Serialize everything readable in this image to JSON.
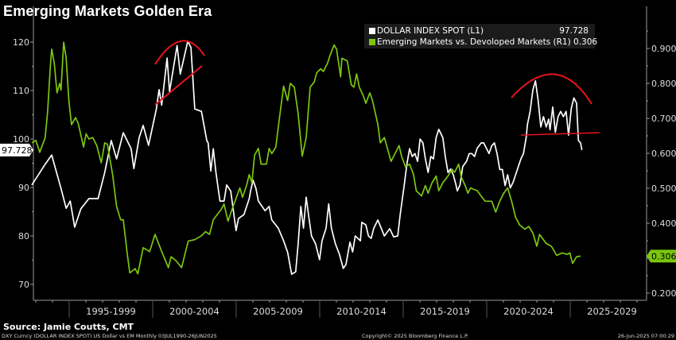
{
  "title": "Emerging Markets Golden Era",
  "legend": {
    "items": [
      {
        "label": "DOLLAR INDEX SPOT (L1)",
        "value": "97.728",
        "color": "#ffffff"
      },
      {
        "label": "Emerging Markets vs. Devoloped Markets (R1)",
        "value": "0.306",
        "color": "#7cc70e"
      }
    ]
  },
  "source": "Source: Jamie Coutts, CMT",
  "footer": {
    "left": "DXY Curncy (DOLLAR INDEX SPOT) US Dollar vs EM  Monthly 03JUL1990-26JUN2025",
    "center": "Copyright© 2025 Bloomberg Finance L.P.",
    "right": "26-Jun-2025 07:00:29"
  },
  "chart_data": {
    "type": "line",
    "title": "Emerging Markets Golden Era",
    "grid": false,
    "legend_placement": "top-right",
    "annotation_color": "#e8141b",
    "x_tick_labels": [
      "1995-1999",
      "2000-2004",
      "2005-2009",
      "2010-2014",
      "2015-2019",
      "2020-2024",
      "2025-2029"
    ],
    "y_left": {
      "ticks": [
        70,
        80,
        90,
        100,
        110,
        120
      ],
      "range": [
        67,
        123
      ],
      "last_value_label": "97.728"
    },
    "y_right": {
      "ticks": [
        "0.200",
        "0.400",
        "0.500",
        "0.600",
        "0.700",
        "0.800",
        "0.900"
      ],
      "range": [
        0.18,
        0.97
      ],
      "last_value_label": "0.306"
    },
    "series": [
      {
        "name": "DOLLAR INDEX SPOT (L1)",
        "axis": "left",
        "color": "#ffffff",
        "x": [
          1992.76,
          1993.56,
          1993.95,
          1994.51,
          1994.82,
          1995.06,
          1995.33,
          1995.7,
          1996.18,
          1996.73,
          1997.13,
          1997.52,
          1997.84,
          1998.24,
          1998.71,
          1998.87,
          1999.19,
          1999.43,
          1999.75,
          2000.22,
          2000.38,
          2000.54,
          2000.86,
          2001.01,
          2001.46,
          2001.65,
          2002.1,
          2002.29,
          2002.52,
          2002.92,
          2003.24,
          2003.32,
          2003.48,
          2003.63,
          2003.79,
          2004.03,
          2004.27,
          2004.43,
          2004.67,
          2004.99,
          2005.14,
          2005.46,
          2005.78,
          2005.86,
          2006.01,
          2006.18,
          2006.33,
          2006.73,
          2006.97,
          2007.13,
          2007.52,
          2007.84,
          2008.08,
          2008.32,
          2008.56,
          2008.71,
          2008.87,
          2009.03,
          2009.19,
          2009.35,
          2009.51,
          2009.75,
          2009.99,
          2010.14,
          2010.38,
          2010.54,
          2010.7,
          2010.94,
          2011.18,
          2011.41,
          2011.57,
          2011.81,
          2011.97,
          2012.13,
          2012.44,
          2012.52,
          2012.76,
          2012.92,
          2013.08,
          2013.24,
          2013.48,
          2013.87,
          2014.19,
          2014.43,
          2014.67,
          2014.82,
          2015.06,
          2015.22,
          2015.38,
          2015.54,
          2015.7,
          2015.86,
          2016.01,
          2016.18,
          2016.33,
          2016.49,
          2016.65,
          2016.81,
          2016.97,
          2017.13,
          2017.37,
          2017.52,
          2017.68,
          2017.84,
          2018.0,
          2018.16,
          2018.24,
          2018.4,
          2018.56,
          2018.79,
          2018.95,
          2019.11,
          2019.27,
          2019.43,
          2019.67,
          2019.82,
          2019.98,
          2020.14,
          2020.3,
          2020.46,
          2020.62,
          2020.78,
          2020.94,
          2021.1,
          2021.25,
          2021.41,
          2021.57,
          2021.73,
          2021.89,
          2022.05,
          2022.2,
          2022.36,
          2022.44,
          2022.6,
          2022.76,
          2022.92,
          2023.08,
          2023.24,
          2023.4,
          2023.56,
          2023.71,
          2023.79,
          2023.95,
          2024.11,
          2024.27,
          2024.43,
          2024.59,
          2024.75,
          2024.9,
          2025.06,
          2025.22,
          2025.38,
          2025.49,
          2025.62,
          2025.7
        ],
        "values": [
          90.5,
          94.8,
          96.7,
          89.8,
          85.7,
          87.2,
          81.8,
          85.6,
          87.7,
          87.7,
          93.1,
          99.7,
          95.9,
          101.3,
          98.0,
          93.9,
          100.3,
          102.8,
          98.7,
          106.2,
          110.2,
          107.0,
          116.7,
          109.8,
          119.3,
          113.4,
          120.2,
          118.9,
          106.2,
          105.7,
          99.7,
          99.2,
          93.4,
          98.0,
          93.0,
          87.2,
          87.2,
          90.5,
          89.3,
          81.1,
          83.6,
          84.4,
          87.7,
          89.3,
          91.5,
          89.8,
          87.2,
          85.2,
          86.1,
          83.3,
          81.6,
          79.0,
          76.6,
          72.1,
          72.6,
          78.4,
          86.1,
          81.6,
          88.0,
          83.9,
          80.0,
          78.4,
          75.1,
          79.0,
          81.6,
          86.6,
          81.6,
          78.4,
          76.2,
          73.3,
          74.1,
          78.7,
          76.7,
          80.0,
          79.0,
          82.8,
          82.3,
          80.0,
          79.5,
          81.6,
          83.3,
          80.0,
          81.5,
          79.8,
          80.0,
          84.4,
          90.5,
          94.8,
          98.0,
          96.4,
          97.0,
          95.4,
          100.0,
          99.2,
          95.9,
          93.1,
          96.4,
          95.9,
          100.3,
          102.0,
          100.3,
          96.4,
          93.1,
          93.8,
          92.6,
          90.5,
          89.3,
          90.5,
          94.3,
          95.4,
          97.0,
          97.0,
          96.4,
          98.1,
          99.2,
          99.2,
          98.1,
          97.0,
          98.6,
          99.2,
          97.0,
          93.7,
          93.7,
          90.4,
          92.6,
          89.9,
          91.0,
          92.6,
          94.3,
          95.9,
          97.0,
          100.3,
          103.0,
          105.7,
          110.1,
          112.0,
          107.9,
          102.5,
          104.6,
          102.5,
          104.1,
          101.9,
          106.6,
          101.4,
          104.6,
          105.7,
          104.6,
          105.7,
          100.8,
          106.3,
          108.5,
          107.4,
          99.7,
          99.2,
          97.728
        ]
      },
      {
        "name": "Emerging Markets vs. Devoloped Markets (R1)",
        "axis": "right",
        "color": "#7cc70e",
        "x": [
          1992.76,
          1993.0,
          1993.24,
          1993.56,
          1993.71,
          1993.87,
          1993.95,
          1994.11,
          1994.27,
          1994.43,
          1994.51,
          1994.67,
          1994.82,
          1994.98,
          1995.14,
          1995.38,
          1995.54,
          1995.7,
          1995.86,
          1996.01,
          1996.18,
          1996.41,
          1996.65,
          1996.92,
          1997.13,
          1997.29,
          1997.44,
          1997.6,
          1997.84,
          1998.08,
          1998.24,
          1998.48,
          1998.63,
          1998.95,
          1999.11,
          1999.43,
          1999.82,
          2000.14,
          2000.54,
          2000.94,
          2001.1,
          2001.41,
          2001.73,
          2002.13,
          2002.52,
          2002.92,
          2003.16,
          2003.4,
          2003.63,
          2004.11,
          2004.27,
          2004.51,
          2004.75,
          2005.22,
          2005.38,
          2005.62,
          2005.78,
          2005.94,
          2006.1,
          2006.33,
          2006.49,
          2006.81,
          2006.97,
          2007.13,
          2007.37,
          2007.6,
          2007.84,
          2008.08,
          2008.24,
          2008.48,
          2008.71,
          2008.95,
          2009.19,
          2009.43,
          2009.67,
          2009.82,
          2010.06,
          2010.22,
          2010.46,
          2010.62,
          2010.86,
          2011.01,
          2011.25,
          2011.33,
          2011.65,
          2011.89,
          2012.05,
          2012.21,
          2012.37,
          2012.6,
          2012.76,
          2013.0,
          2013.16,
          2013.48,
          2013.63,
          2013.87,
          2014.27,
          2014.51,
          2014.75,
          2014.9,
          2015.14,
          2015.38,
          2015.62,
          2015.78,
          2016.1,
          2016.33,
          2016.49,
          2016.73,
          2016.97,
          2017.13,
          2017.37,
          2017.68,
          2017.92,
          2018.08,
          2018.32,
          2018.48,
          2018.71,
          2018.87,
          2019.03,
          2019.43,
          2019.9,
          2020.3,
          2020.54,
          2020.78,
          2021.02,
          2021.25,
          2021.49,
          2021.73,
          2021.97,
          2022.29,
          2022.52,
          2022.76,
          2023.0,
          2023.16,
          2023.56,
          2023.87,
          2024.19,
          2024.51,
          2024.82,
          2024.98,
          2025.14,
          2025.38,
          2025.62
        ],
        "values": [
          0.63,
          0.637,
          0.603,
          0.645,
          0.72,
          0.849,
          0.898,
          0.857,
          0.773,
          0.8,
          0.781,
          0.918,
          0.872,
          0.751,
          0.682,
          0.702,
          0.686,
          0.652,
          0.618,
          0.656,
          0.641,
          0.645,
          0.622,
          0.573,
          0.63,
          0.626,
          0.584,
          0.539,
          0.448,
          0.41,
          0.41,
          0.311,
          0.258,
          0.27,
          0.255,
          0.33,
          0.319,
          0.368,
          0.319,
          0.273,
          0.304,
          0.292,
          0.273,
          0.349,
          0.353,
          0.364,
          0.376,
          0.368,
          0.41,
          0.44,
          0.455,
          0.406,
          0.44,
          0.501,
          0.474,
          0.508,
          0.539,
          0.516,
          0.595,
          0.614,
          0.569,
          0.569,
          0.614,
          0.599,
          0.618,
          0.705,
          0.792,
          0.751,
          0.8,
          0.789,
          0.713,
          0.592,
          0.645,
          0.789,
          0.804,
          0.83,
          0.842,
          0.834,
          0.857,
          0.88,
          0.91,
          0.898,
          0.819,
          0.872,
          0.864,
          0.796,
          0.789,
          0.827,
          0.789,
          0.766,
          0.743,
          0.773,
          0.751,
          0.683,
          0.63,
          0.645,
          0.577,
          0.599,
          0.622,
          0.592,
          0.561,
          0.569,
          0.539,
          0.493,
          0.478,
          0.508,
          0.486,
          0.516,
          0.535,
          0.493,
          0.516,
          0.535,
          0.554,
          0.546,
          0.569,
          0.531,
          0.508,
          0.486,
          0.501,
          0.493,
          0.463,
          0.463,
          0.432,
          0.463,
          0.486,
          0.501,
          0.463,
          0.417,
          0.395,
          0.383,
          0.391,
          0.372,
          0.334,
          0.368,
          0.342,
          0.334,
          0.308,
          0.315,
          0.311,
          0.315,
          0.285,
          0.304,
          0.306
        ]
      }
    ]
  }
}
